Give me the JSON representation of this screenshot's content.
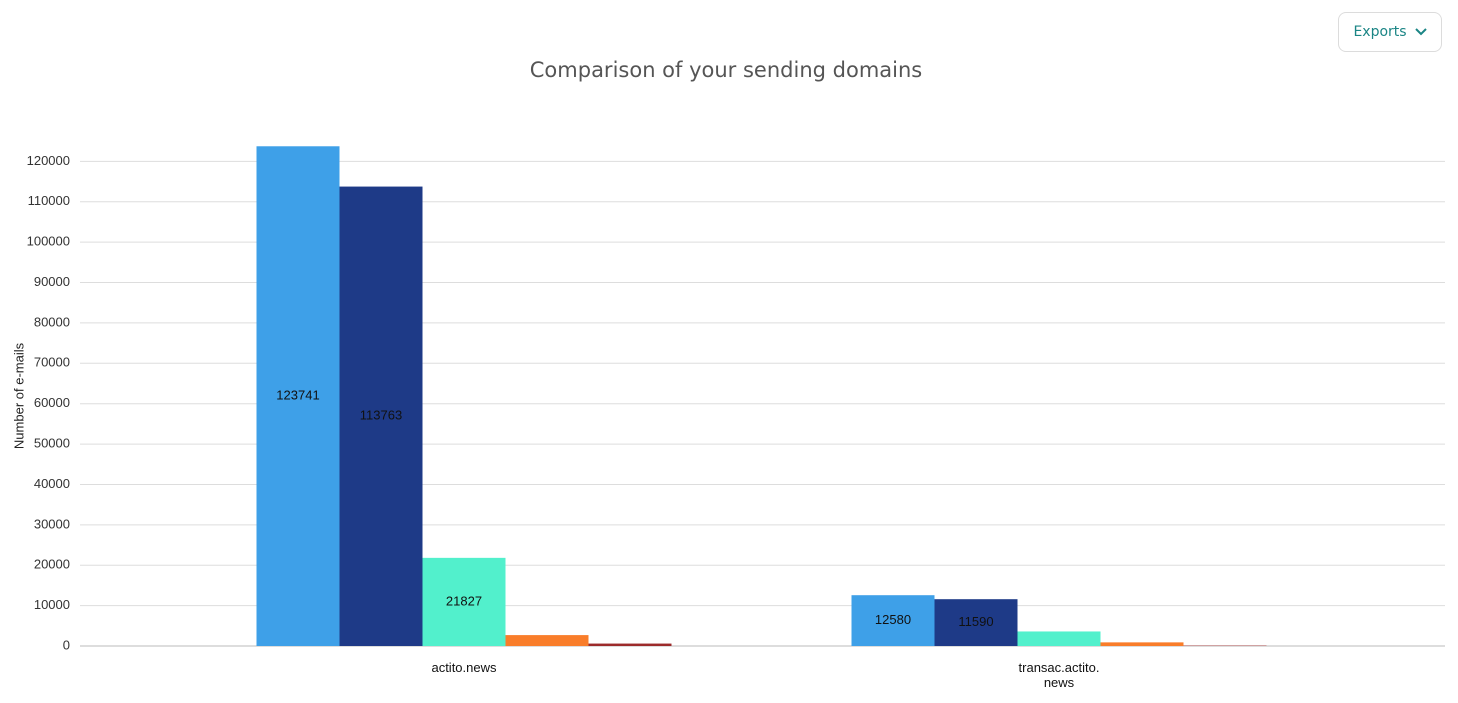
{
  "exports_button": "Exports",
  "chart_data": {
    "type": "bar",
    "title": "Comparison of your sending domains",
    "y_label": "Number of e-mails",
    "categories": [
      "actito.news",
      "transac.actito.news"
    ],
    "series": [
      {
        "color": "#3ea0e8",
        "values": [
          123741,
          12580
        ]
      },
      {
        "color": "#1e3a87",
        "values": [
          113763,
          11590
        ]
      },
      {
        "color": "#52f0cc",
        "values": [
          21827,
          3600
        ]
      },
      {
        "color": "#f97d2a",
        "values": [
          2700,
          900
        ]
      },
      {
        "color": "#9c2b2b",
        "values": [
          600,
          100
        ]
      }
    ],
    "ylim": [
      0,
      130000
    ],
    "yticks": [
      0,
      10000,
      20000,
      30000,
      40000,
      50000,
      60000,
      70000,
      80000,
      90000,
      100000,
      110000,
      120000
    ],
    "grid": true
  }
}
